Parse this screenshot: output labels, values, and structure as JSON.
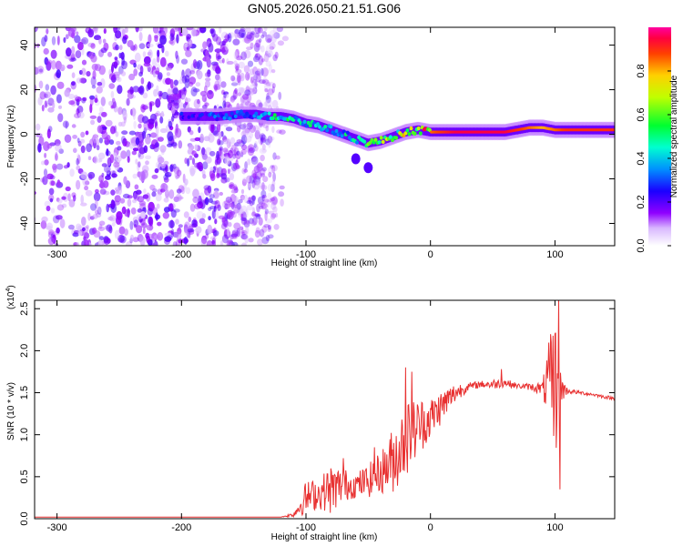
{
  "title": "GN05.2026.050.21.51.G06",
  "chart_data": [
    {
      "type": "heatmap",
      "name": "spectrogram",
      "xlabel": "Height of straight line (km)",
      "ylabel": "Frequency (Hz)",
      "xlim": [
        -318,
        148
      ],
      "ylim": [
        -50,
        48
      ],
      "xticks": [
        -300,
        -200,
        -100,
        0,
        100
      ],
      "yticks": [
        -40,
        -20,
        0,
        20,
        40
      ],
      "colorbar": {
        "label": "Normalized spectral amplitude",
        "range": [
          0,
          1
        ],
        "ticks": [
          0.0,
          0.2,
          0.4,
          0.6,
          0.8
        ]
      },
      "noise_region_x": [
        -318,
        -125
      ],
      "ridge": [
        {
          "x": -200,
          "f": 8,
          "amp": 0.25
        },
        {
          "x": -190,
          "f": 8,
          "amp": 0.25
        },
        {
          "x": -170,
          "f": 8,
          "amp": 0.3
        },
        {
          "x": -150,
          "f": 9,
          "amp": 0.3
        },
        {
          "x": -140,
          "f": 9,
          "amp": 0.35
        },
        {
          "x": -130,
          "f": 8,
          "amp": 0.45
        },
        {
          "x": -120,
          "f": 8,
          "amp": 0.5
        },
        {
          "x": -110,
          "f": 7,
          "amp": 0.5
        },
        {
          "x": -100,
          "f": 5,
          "amp": 0.5
        },
        {
          "x": -90,
          "f": 4,
          "amp": 0.45
        },
        {
          "x": -80,
          "f": 2,
          "amp": 0.45
        },
        {
          "x": -70,
          "f": 0,
          "amp": 0.45
        },
        {
          "x": -60,
          "f": -2,
          "amp": 0.45
        },
        {
          "x": -50,
          "f": -4,
          "amp": 0.55
        },
        {
          "x": -40,
          "f": -3,
          "amp": 0.6
        },
        {
          "x": -30,
          "f": -1,
          "amp": 0.65
        },
        {
          "x": -20,
          "f": 1,
          "amp": 0.7
        },
        {
          "x": -10,
          "f": 2,
          "amp": 0.75
        },
        {
          "x": 0,
          "f": 1,
          "amp": 0.85
        },
        {
          "x": 10,
          "f": 1,
          "amp": 0.9
        },
        {
          "x": 20,
          "f": 1,
          "amp": 0.95
        },
        {
          "x": 30,
          "f": 1,
          "amp": 0.95
        },
        {
          "x": 40,
          "f": 1,
          "amp": 0.95
        },
        {
          "x": 50,
          "f": 1,
          "amp": 0.95
        },
        {
          "x": 60,
          "f": 1,
          "amp": 0.95
        },
        {
          "x": 70,
          "f": 2,
          "amp": 0.9
        },
        {
          "x": 80,
          "f": 3,
          "amp": 0.85
        },
        {
          "x": 90,
          "f": 3,
          "amp": 0.8
        },
        {
          "x": 100,
          "f": 2,
          "amp": 0.85
        },
        {
          "x": 110,
          "f": 2,
          "amp": 0.9
        },
        {
          "x": 120,
          "f": 2,
          "amp": 0.9
        },
        {
          "x": 130,
          "f": 2,
          "amp": 0.9
        },
        {
          "x": 140,
          "f": 2,
          "amp": 0.9
        },
        {
          "x": 148,
          "f": 2,
          "amp": 0.9
        }
      ],
      "dips": [
        {
          "x": -60,
          "f": -11
        },
        {
          "x": -50,
          "f": -15
        }
      ]
    },
    {
      "type": "line",
      "name": "snr",
      "xlabel": "Height of straight line (km)",
      "ylabel": "SNR (10 * v/v)",
      "ylabel_multiplier": "(x10",
      "ylabel_exponent": "4",
      "xlim": [
        -318,
        148
      ],
      "ylim": [
        0,
        2.6
      ],
      "xticks": [
        -300,
        -200,
        -100,
        0,
        100
      ],
      "yticks": [
        0.0,
        0.5,
        1.0,
        1.5,
        2.0,
        2.5
      ],
      "color": "#e83030",
      "series_envelope": {
        "x": [
          -318,
          -120,
          -110,
          -100,
          -90,
          -80,
          -70,
          -60,
          -50,
          -40,
          -30,
          -20,
          -10,
          0,
          10,
          20,
          30,
          40,
          50,
          60,
          70,
          80,
          90,
          95,
          100,
          105,
          110,
          120,
          130,
          140,
          148
        ],
        "y": [
          0.02,
          0.02,
          0.05,
          0.25,
          0.3,
          0.35,
          0.4,
          0.4,
          0.45,
          0.55,
          0.7,
          0.95,
          1.1,
          1.2,
          1.35,
          1.5,
          1.57,
          1.6,
          1.6,
          1.62,
          1.58,
          1.57,
          1.55,
          1.6,
          1.55,
          1.55,
          1.52,
          1.5,
          1.48,
          1.45,
          1.43
        ],
        "jitter": [
          0.0,
          0.0,
          0.03,
          0.2,
          0.18,
          0.3,
          0.2,
          0.15,
          0.2,
          0.25,
          0.4,
          0.45,
          0.35,
          0.25,
          0.2,
          0.12,
          0.05,
          0.04,
          0.06,
          0.05,
          0.03,
          0.04,
          0.08,
          0.5,
          0.9,
          0.2,
          0.03,
          0.02,
          0.02,
          0.02,
          0.02
        ]
      },
      "spikes": [
        {
          "x": -70,
          "y": 0.72
        },
        {
          "x": -45,
          "y": 0.85
        },
        {
          "x": -20,
          "y": 1.8
        },
        {
          "x": -15,
          "y": 1.75
        },
        {
          "x": 57,
          "y": 1.78
        },
        {
          "x": 97,
          "y": 2.1
        },
        {
          "x": 100,
          "y": 2.2
        },
        {
          "x": 103,
          "y": 2.6
        },
        {
          "x": 104,
          "y": 0.35
        }
      ]
    }
  ]
}
